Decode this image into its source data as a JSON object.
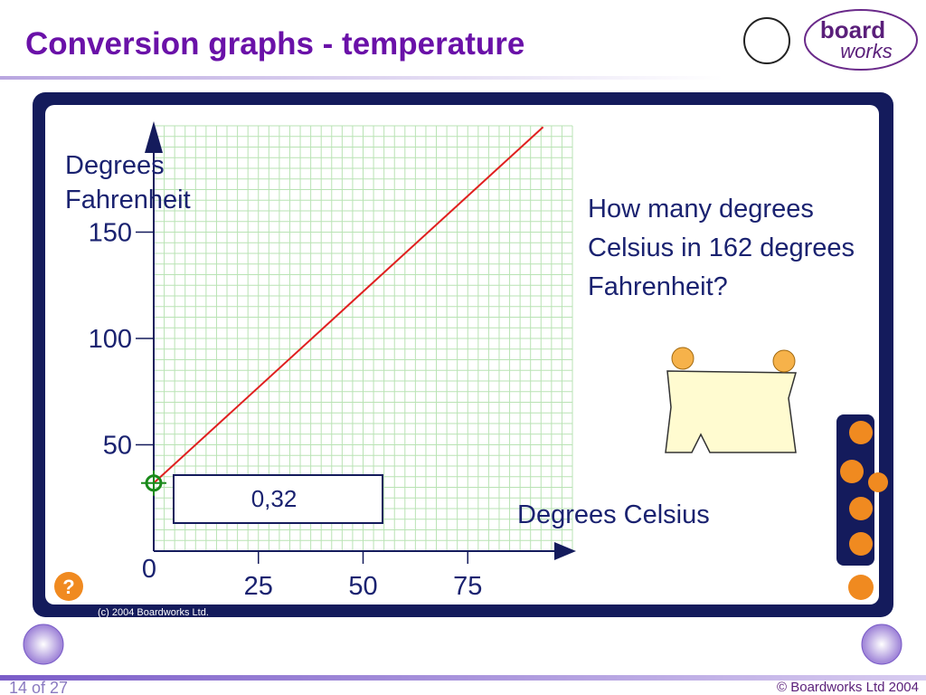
{
  "header": {
    "title": "Conversion graphs - temperature",
    "logo": "board",
    "logo_sub": "works"
  },
  "chart_data": {
    "type": "line",
    "x_label": "Degrees Celsius",
    "y_label": "Degrees Fahrenheit",
    "x": [
      0,
      93
    ],
    "series": [
      {
        "color": "#e02020",
        "values": [
          32,
          199.4
        ]
      }
    ],
    "xlim": [
      0,
      100
    ],
    "ylim": [
      0,
      200
    ],
    "xticks": [
      0,
      25,
      50,
      75
    ],
    "yticks": [
      50,
      100,
      150
    ],
    "grid": true,
    "minor_grid": {
      "x": 2.5,
      "y": 5
    },
    "marker": {
      "x": 0,
      "y": 32,
      "label": "0,32",
      "color": "#1a8a1a"
    }
  },
  "question": "How many degrees Celsius in 162 degrees Fahrenheit?",
  "help_button": "?",
  "copyright_panel": "(c) 2004 Boardworks Ltd.",
  "footer": {
    "page": "14 of 27",
    "copyright": "© Boardworks Ltd 2004"
  }
}
